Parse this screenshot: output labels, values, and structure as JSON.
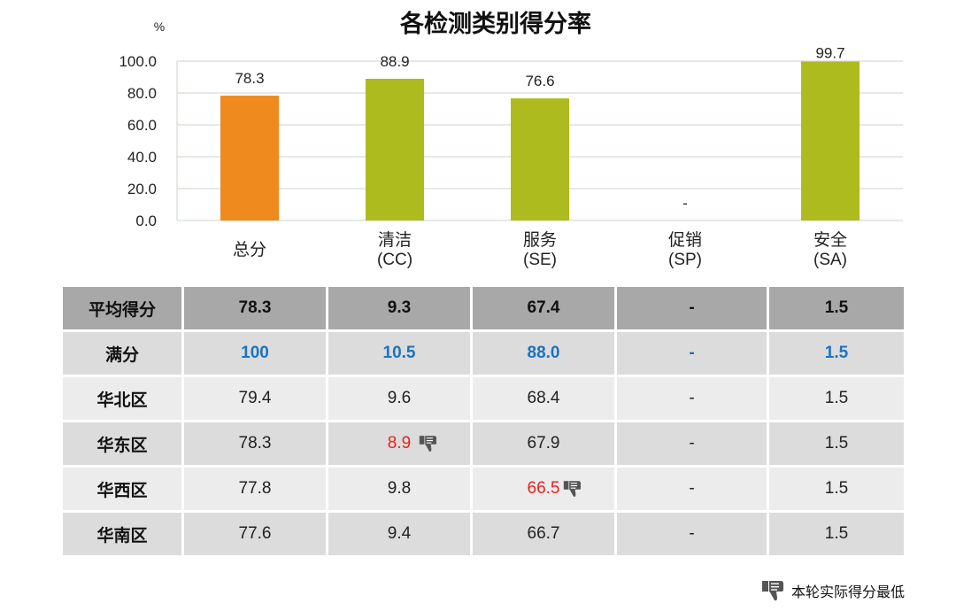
{
  "chart_data": {
    "type": "bar",
    "title": "各检测类别得分率",
    "ylabel": "%",
    "ylim": [
      0,
      100
    ],
    "yticks": [
      "0.0",
      "20.0",
      "40.0",
      "60.0",
      "80.0",
      "100.0"
    ],
    "grid": true,
    "categories": [
      "总分",
      "清洁\n(CC)",
      "服务\n(SE)",
      "促销\n(SP)",
      "安全\n(SA)"
    ],
    "values": [
      78.3,
      88.9,
      76.6,
      null,
      99.7
    ],
    "value_labels": [
      "78.3",
      "88.9",
      "76.6",
      "-",
      "99.7"
    ],
    "colors": [
      "#ef8a1f",
      "#adbb1e",
      "#adbb1e",
      "#adbb1e",
      "#adbb1e"
    ]
  },
  "table": {
    "rows": [
      {
        "label": "平均得分",
        "values": [
          "78.3",
          "9.3",
          "67.4",
          "-",
          "1.5"
        ],
        "kind": "avg",
        "lowest": [
          false,
          false,
          false,
          false,
          false
        ]
      },
      {
        "label": "满分",
        "values": [
          "100",
          "10.5",
          "88.0",
          "-",
          "1.5"
        ],
        "kind": "full",
        "lowest": [
          false,
          false,
          false,
          false,
          false
        ]
      },
      {
        "label": "华北区",
        "values": [
          "79.4",
          "9.6",
          "68.4",
          "-",
          "1.5"
        ],
        "kind": "region",
        "lowest": [
          false,
          false,
          false,
          false,
          false
        ]
      },
      {
        "label": "华东区",
        "values": [
          "78.3",
          "8.9",
          "67.9",
          "-",
          "1.5"
        ],
        "kind": "region",
        "lowest": [
          false,
          true,
          false,
          false,
          false
        ]
      },
      {
        "label": "华西区",
        "values": [
          "77.8",
          "9.8",
          "66.5",
          "-",
          "1.5"
        ],
        "kind": "region",
        "lowest": [
          false,
          false,
          true,
          false,
          false
        ]
      },
      {
        "label": "华南区",
        "values": [
          "77.6",
          "9.4",
          "66.7",
          "-",
          "1.5"
        ],
        "kind": "region",
        "lowest": [
          false,
          false,
          false,
          false,
          false
        ]
      }
    ],
    "thumb_icon": "thumbs-down-icon",
    "highlight_color": "#e8231d",
    "full_score_color": "#1a73c4"
  },
  "legend": {
    "icon": "thumbs-down-icon",
    "text": "本轮实际得分最低"
  }
}
